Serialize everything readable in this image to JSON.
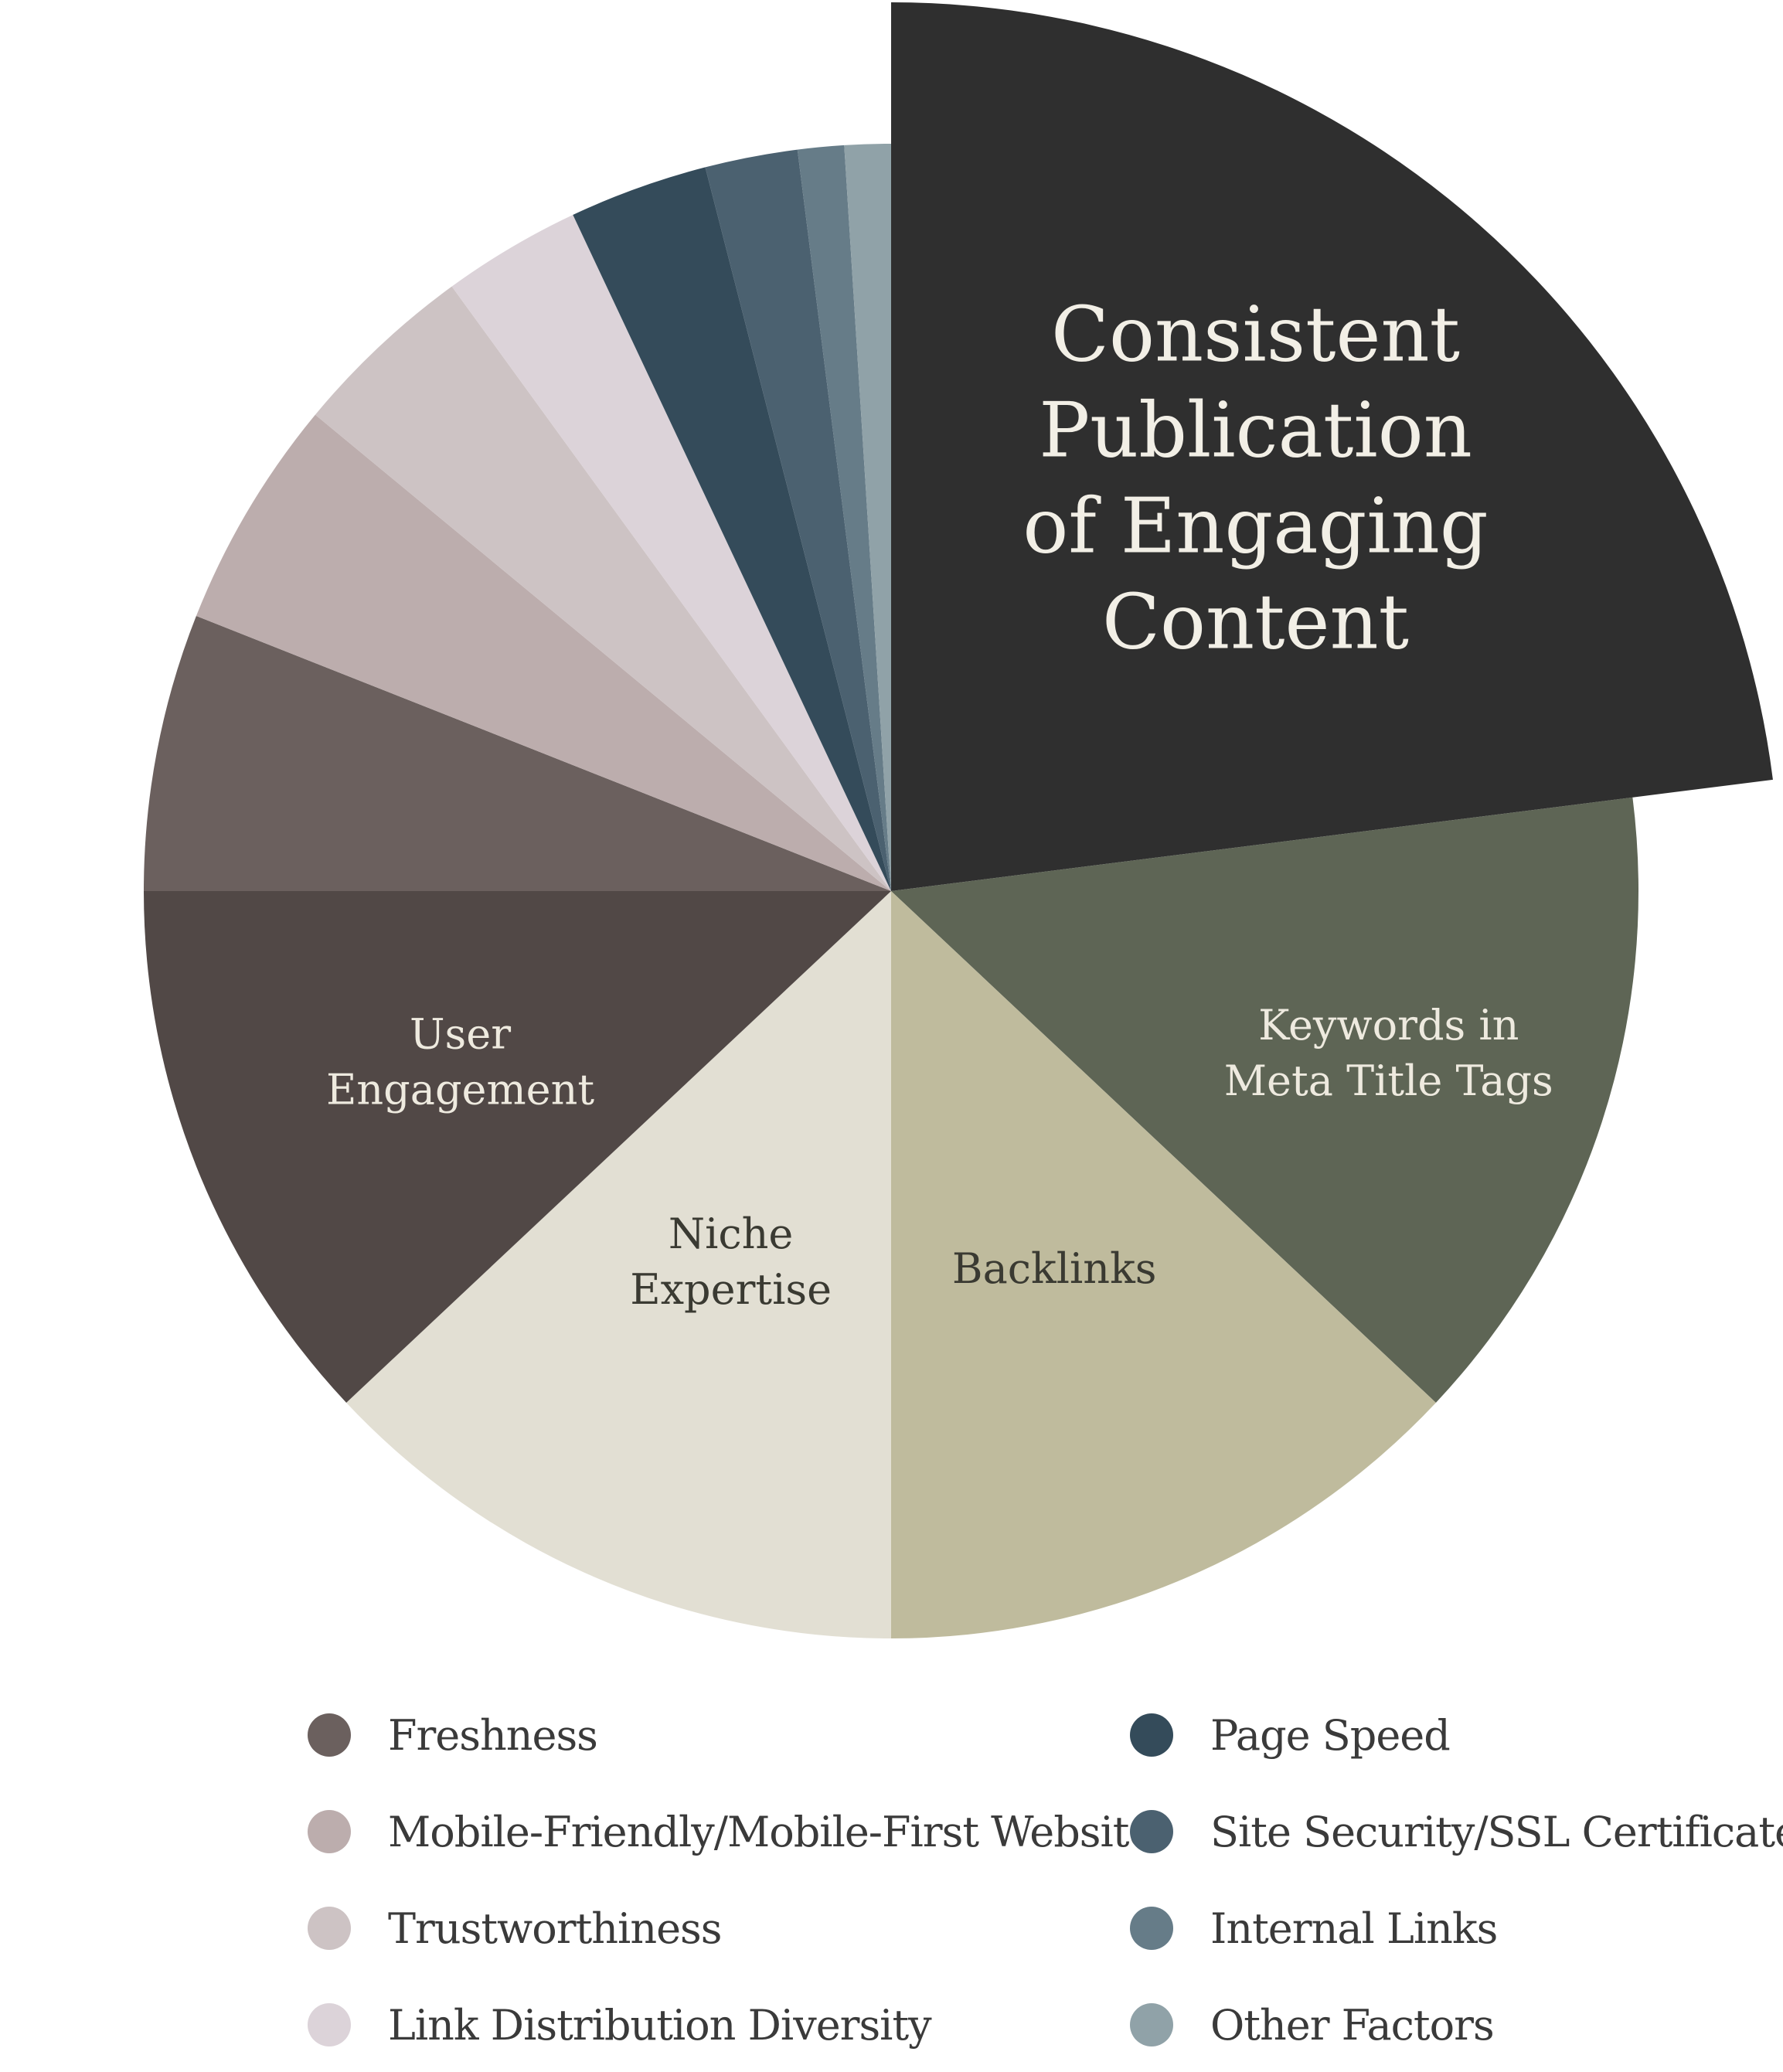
{
  "chart_data": {
    "type": "pie",
    "title": "",
    "slices": [
      {
        "label": "Consistent Publication of Engaging Content",
        "value": 23,
        "color": "#2f2f2f",
        "exploded": true,
        "show_label": true,
        "label_lines": [
          "Consistent",
          "Publication",
          "of Engaging",
          "Content"
        ],
        "label_color": "#f2efe6"
      },
      {
        "label": "Keywords in Meta Title Tags",
        "value": 14,
        "color": "#5e6555",
        "show_label": true,
        "label_lines": [
          "Keywords in",
          "Meta Title Tags"
        ],
        "label_color": "#eeeadf"
      },
      {
        "label": "Backlinks",
        "value": 13,
        "color": "#bfbb9d",
        "show_label": true,
        "label_lines": [
          "Backlinks"
        ],
        "label_color": "#3a3a32"
      },
      {
        "label": "Niche Expertise",
        "value": 13,
        "color": "#e2dfd3",
        "show_label": true,
        "label_lines": [
          "Niche",
          "Expertise"
        ],
        "label_color": "#3a3a32"
      },
      {
        "label": "User Engagement",
        "value": 12,
        "color": "#514846",
        "show_label": true,
        "label_lines": [
          "User",
          "Engagement"
        ],
        "label_color": "#eeeadf"
      },
      {
        "label": "Freshness",
        "value": 6,
        "color": "#6b605e",
        "show_label": false
      },
      {
        "label": "Mobile-Friendly/Mobile-First Website",
        "value": 5,
        "color": "#bcadad",
        "show_label": false
      },
      {
        "label": "Trustworthiness",
        "value": 4,
        "color": "#cdc3c4",
        "show_label": false
      },
      {
        "label": "Link Distribution Diversity",
        "value": 3,
        "color": "#dcd3d9",
        "show_label": false
      },
      {
        "label": "Page Speed",
        "value": 3,
        "color": "#344b5a",
        "show_label": false
      },
      {
        "label": "Site Security/SSL Certificate",
        "value": 2,
        "color": "#4b6170",
        "show_label": false
      },
      {
        "label": "Internal Links",
        "value": 1,
        "color": "#667c88",
        "show_label": false
      },
      {
        "label": "Other Factors",
        "value": 1,
        "color": "#90a2a8",
        "show_label": false
      }
    ]
  },
  "legend": {
    "placement": "bottom",
    "left": [
      {
        "label": "Freshness",
        "color": "#6b605e"
      },
      {
        "label": "Mobile-Friendly/Mobile-First Website",
        "color": "#bcadad"
      },
      {
        "label": "Trustworthiness",
        "color": "#cdc3c4"
      },
      {
        "label": "Link Distribution Diversity",
        "color": "#dcd3d9"
      }
    ],
    "right": [
      {
        "label": "Page Speed",
        "color": "#344b5a"
      },
      {
        "label": "Site Security/SSL Certificate",
        "color": "#4b6170"
      },
      {
        "label": "Internal Links",
        "color": "#667c88"
      },
      {
        "label": "Other Factors",
        "color": "#90a2a8"
      }
    ]
  }
}
